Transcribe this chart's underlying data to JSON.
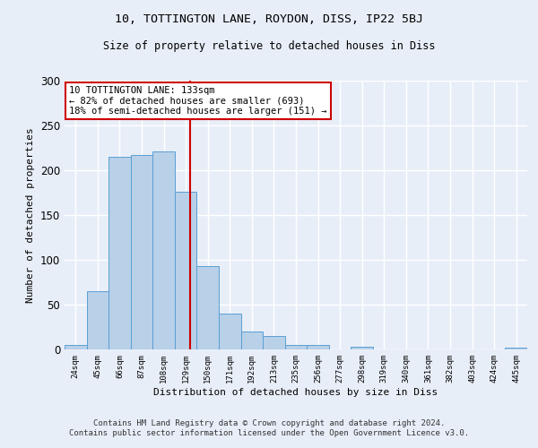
{
  "title": "10, TOTTINGTON LANE, ROYDON, DISS, IP22 5BJ",
  "subtitle": "Size of property relative to detached houses in Diss",
  "xlabel": "Distribution of detached houses by size in Diss",
  "ylabel": "Number of detached properties",
  "bar_color": "#b8d0e8",
  "bar_edge_color": "#5a9fd4",
  "background_color": "#e8eef8",
  "grid_color": "#ffffff",
  "categories": [
    "24sqm",
    "45sqm",
    "66sqm",
    "87sqm",
    "108sqm",
    "129sqm",
    "150sqm",
    "171sqm",
    "192sqm",
    "213sqm",
    "235sqm",
    "256sqm",
    "277sqm",
    "298sqm",
    "319sqm",
    "340sqm",
    "361sqm",
    "382sqm",
    "403sqm",
    "424sqm",
    "445sqm"
  ],
  "values": [
    5,
    65,
    215,
    217,
    221,
    176,
    93,
    40,
    20,
    15,
    5,
    5,
    0,
    3,
    0,
    0,
    0,
    0,
    0,
    0,
    2
  ],
  "ylim": [
    0,
    300
  ],
  "yticks": [
    0,
    50,
    100,
    150,
    200,
    250,
    300
  ],
  "property_line_index": 5.18,
  "annotation_text_line1": "10 TOTTINGTON LANE: 133sqm",
  "annotation_text_line2": "← 82% of detached houses are smaller (693)",
  "annotation_text_line3": "18% of semi-detached houses are larger (151) →",
  "vline_color": "#cc0000",
  "annotation_box_color": "#ffffff",
  "annotation_box_edge": "#cc0000",
  "footer_line1": "Contains HM Land Registry data © Crown copyright and database right 2024.",
  "footer_line2": "Contains public sector information licensed under the Open Government Licence v3.0."
}
